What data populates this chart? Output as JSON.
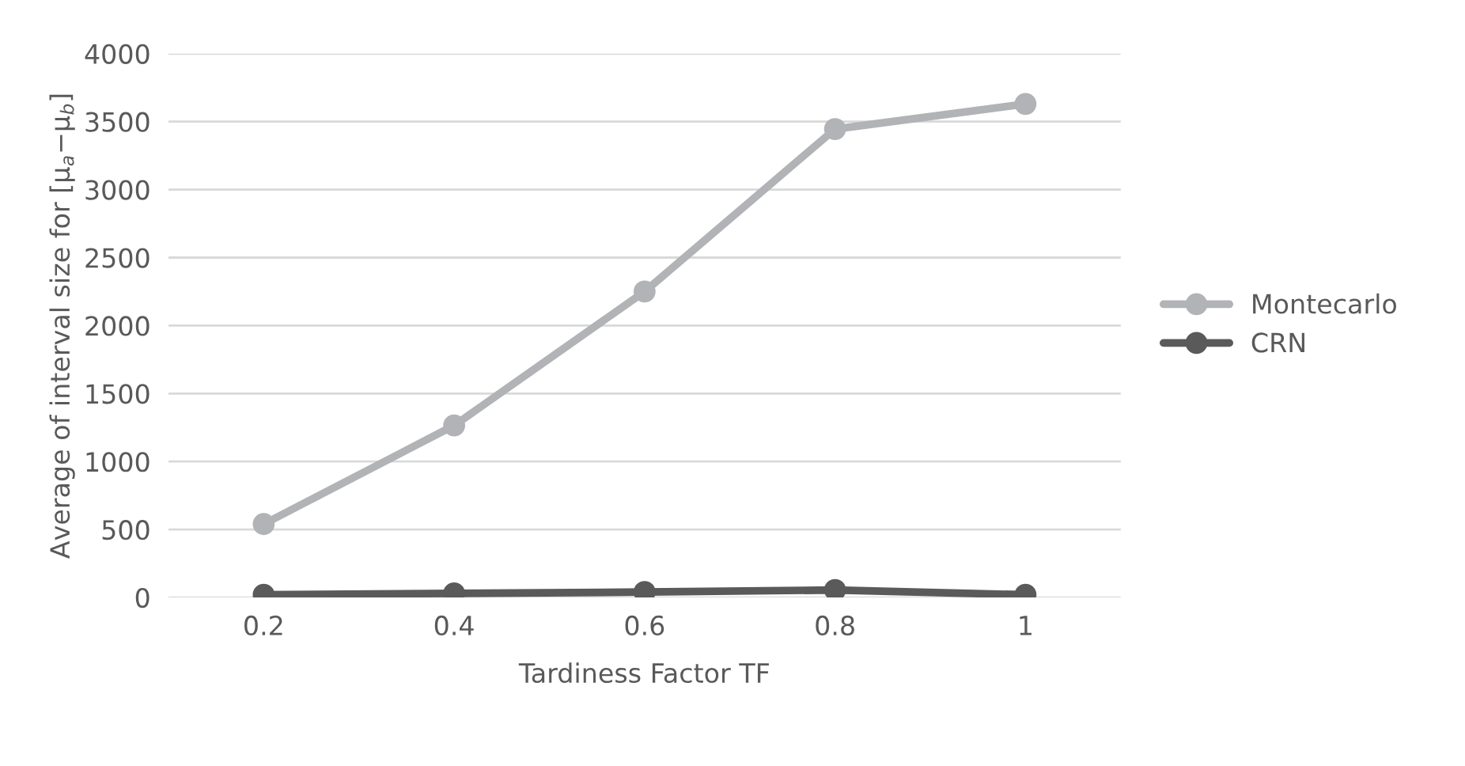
{
  "chart_data": {
    "type": "line",
    "xlabel": "Tardiness Factor TF",
    "ylabel": "Average of interval size for [μ$_{a}$−μ$_{b}$]",
    "categories": [
      "0.2",
      "0.4",
      "0.6",
      "0.8",
      "1"
    ],
    "series": [
      {
        "name": "Montecarlo",
        "color": "#b1b3b6",
        "values": [
          540,
          1265,
          2250,
          3445,
          3630
        ]
      },
      {
        "name": "CRN",
        "color": "#5a5a5a",
        "values": [
          20,
          30,
          40,
          55,
          20
        ]
      }
    ],
    "ylim": [
      0,
      4000
    ],
    "yticks": [
      0,
      500,
      1000,
      1500,
      2000,
      2500,
      3000,
      3500,
      4000
    ],
    "grid": "y",
    "legend": "right",
    "marker": "circle",
    "line_style": "solid"
  }
}
